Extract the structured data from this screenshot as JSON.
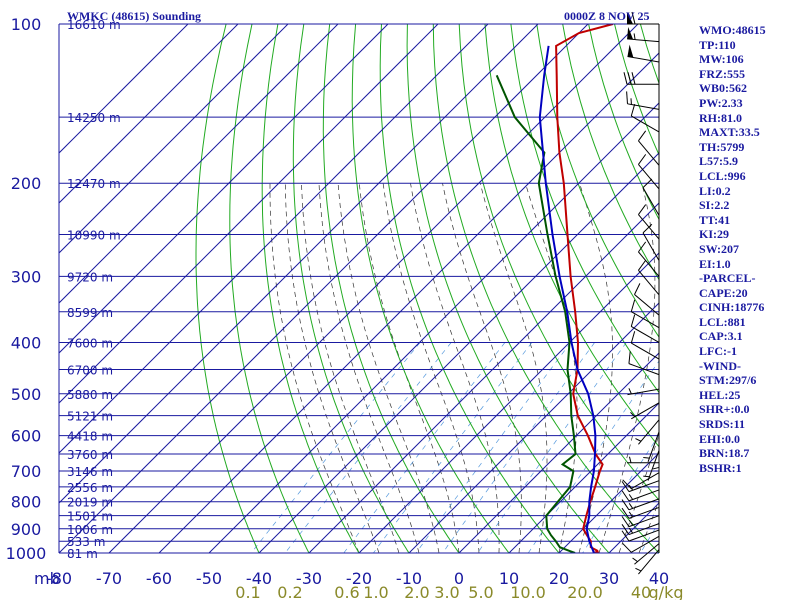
{
  "header": {
    "title": "WMKC (48615) Sounding",
    "datetime": "0000Z  8 NOV 25"
  },
  "indices": [
    "WMO:48615",
    "TP:110",
    "MW:106",
    "FRZ:555",
    "WB0:562",
    "PW:2.33",
    "RH:81.0",
    "MAXT:33.5",
    "TH:5799",
    "L57:5.9",
    "LCL:996",
    "LI:0.2",
    "SI:2.2",
    "TT:41",
    "KI:29",
    "SW:207",
    "EI:1.0",
    "-PARCEL-",
    "CAPE:20",
    "CINH:18776",
    "LCL:881",
    "CAP:3.1",
    "LFC:-1",
    "-WIND-",
    "STM:297/6",
    "HEL:25",
    "SHR+:0.0",
    "SRDS:11",
    "EHI:0.0",
    "BRN:18.7",
    "BSHR:1"
  ],
  "colors": {
    "axis": "#1a1aa0",
    "isotherm": "#1a1aa0",
    "dry_adiabat": "#22aa22",
    "moist_adiabat": "#333333",
    "mixing_ratio": "#5599dd",
    "temperature": "#c00000",
    "dewpoint": "#005500",
    "parcel": "#0000c0",
    "wind": "#000000",
    "mixing_label": "#8a8a2a"
  },
  "chart_data": {
    "type": "skew-t",
    "pressure_axis": {
      "label": "mb",
      "ticks": [
        100,
        200,
        300,
        400,
        500,
        600,
        700,
        800,
        900,
        1000
      ],
      "range": [
        100,
        1000
      ]
    },
    "temperature_axis": {
      "ticks": [
        -80,
        -70,
        -60,
        -50,
        -40,
        -30,
        -20,
        -10,
        0,
        10,
        20,
        30,
        40
      ],
      "range": [
        -80,
        40
      ]
    },
    "mixing_ratio_labels": [
      "0.1",
      "0.2",
      "0.6",
      "1.0",
      "2.0",
      "3.0",
      "5.0",
      "10.0",
      "20.0",
      "40",
      "g/kg"
    ],
    "height_labels": [
      {
        "p": 100,
        "text": "16610 m"
      },
      {
        "p": 150,
        "text": "14250 m"
      },
      {
        "p": 200,
        "text": "12470 m"
      },
      {
        "p": 250,
        "text": "10990 m"
      },
      {
        "p": 300,
        "text": "9720 m"
      },
      {
        "p": 350,
        "text": "8599 m"
      },
      {
        "p": 400,
        "text": "7600 m"
      },
      {
        "p": 450,
        "text": "6700 m"
      },
      {
        "p": 500,
        "text": "5880 m"
      },
      {
        "p": 550,
        "text": "5121 m"
      },
      {
        "p": 600,
        "text": "4418 m"
      },
      {
        "p": 650,
        "text": "3760 m"
      },
      {
        "p": 700,
        "text": "3146 m"
      },
      {
        "p": 750,
        "text": "2556 m"
      },
      {
        "p": 800,
        "text": "2019 m"
      },
      {
        "p": 850,
        "text": "1501 m"
      },
      {
        "p": 900,
        "text": "1006 m"
      },
      {
        "p": 950,
        "text": "533 m"
      },
      {
        "p": 1000,
        "text": "81 m"
      }
    ],
    "series": [
      {
        "name": "temperature",
        "points": [
          [
            1000,
            26.8
          ],
          [
            995,
            27.5
          ],
          [
            990,
            27.2
          ],
          [
            975,
            25.2
          ],
          [
            950,
            24.0
          ],
          [
            925,
            22.0
          ],
          [
            900,
            20.0
          ],
          [
            850,
            18.0
          ],
          [
            800,
            16.0
          ],
          [
            750,
            14.0
          ],
          [
            700,
            11.8
          ],
          [
            680,
            11.0
          ],
          [
            650,
            7.5
          ],
          [
            600,
            2.3
          ],
          [
            550,
            -3.7
          ],
          [
            500,
            -9.0
          ],
          [
            450,
            -13.0
          ],
          [
            400,
            -18.3
          ],
          [
            350,
            -25.0
          ],
          [
            300,
            -33.0
          ],
          [
            250,
            -42.0
          ],
          [
            200,
            -53.0
          ],
          [
            175,
            -60.0
          ],
          [
            150,
            -67.5
          ],
          [
            125,
            -76.0
          ],
          [
            110,
            -82.0
          ],
          [
            104,
            -80.0
          ],
          [
            100,
            -75.0
          ]
        ]
      },
      {
        "name": "dewpoint",
        "points": [
          [
            1000,
            23.2
          ],
          [
            990,
            21.5
          ],
          [
            975,
            19.0
          ],
          [
            950,
            17.0
          ],
          [
            925,
            14.8
          ],
          [
            900,
            12.8
          ],
          [
            850,
            10.0
          ],
          [
            800,
            9.5
          ],
          [
            750,
            9.0
          ],
          [
            700,
            6.5
          ],
          [
            680,
            3.0
          ],
          [
            650,
            3.5
          ],
          [
            600,
            -0.5
          ],
          [
            550,
            -5.0
          ],
          [
            500,
            -9.5
          ],
          [
            450,
            -15.0
          ],
          [
            400,
            -20.0
          ],
          [
            350,
            -27.0
          ],
          [
            300,
            -36.0
          ],
          [
            250,
            -46.0
          ],
          [
            200,
            -58.0
          ],
          [
            175,
            -63.0
          ],
          [
            150,
            -76.0
          ],
          [
            125,
            -88.0
          ]
        ]
      },
      {
        "name": "parcel",
        "points": [
          [
            1000,
            27.0
          ],
          [
            950,
            23.7
          ],
          [
            900,
            20.7
          ],
          [
            850,
            18.6
          ],
          [
            800,
            15.8
          ],
          [
            750,
            13.2
          ],
          [
            700,
            10.6
          ],
          [
            650,
            7.4
          ],
          [
            600,
            3.8
          ],
          [
            550,
            -0.6
          ],
          [
            500,
            -6.0
          ],
          [
            450,
            -13.0
          ],
          [
            400,
            -19.6
          ],
          [
            350,
            -26.6
          ],
          [
            300,
            -35.2
          ],
          [
            250,
            -45.0
          ],
          [
            200,
            -56.6
          ],
          [
            150,
            -71.0
          ],
          [
            125,
            -78.5
          ],
          [
            110,
            -83.5
          ]
        ]
      }
    ],
    "wind_barbs": [
      {
        "p": 100,
        "dir": 270,
        "spd": 60
      },
      {
        "p": 108,
        "dir": 275,
        "spd": 55
      },
      {
        "p": 118,
        "dir": 280,
        "spd": 50
      },
      {
        "p": 130,
        "dir": 270,
        "spd": 30
      },
      {
        "p": 145,
        "dir": 280,
        "spd": 15
      },
      {
        "p": 160,
        "dir": 300,
        "spd": 10
      },
      {
        "p": 185,
        "dir": 320,
        "spd": 10
      },
      {
        "p": 205,
        "dir": 320,
        "spd": 10
      },
      {
        "p": 230,
        "dir": 330,
        "spd": 10
      },
      {
        "p": 255,
        "dir": 320,
        "spd": 10
      },
      {
        "p": 280,
        "dir": 330,
        "spd": 10
      },
      {
        "p": 300,
        "dir": 320,
        "spd": 10
      },
      {
        "p": 325,
        "dir": 320,
        "spd": 10
      },
      {
        "p": 355,
        "dir": 310,
        "spd": 10
      },
      {
        "p": 375,
        "dir": 300,
        "spd": 10
      },
      {
        "p": 400,
        "dir": 300,
        "spd": 10
      },
      {
        "p": 430,
        "dir": 300,
        "spd": 10
      },
      {
        "p": 460,
        "dir": 290,
        "spd": 10
      },
      {
        "p": 490,
        "dir": 260,
        "spd": 5
      },
      {
        "p": 520,
        "dir": 240,
        "spd": 5
      },
      {
        "p": 560,
        "dir": 220,
        "spd": 5
      },
      {
        "p": 590,
        "dir": 200,
        "spd": 5
      },
      {
        "p": 610,
        "dir": 180,
        "spd": 5
      },
      {
        "p": 640,
        "dir": 200,
        "spd": 5
      },
      {
        "p": 675,
        "dir": 270,
        "spd": 5
      },
      {
        "p": 705,
        "dir": 240,
        "spd": 10
      },
      {
        "p": 730,
        "dir": 250,
        "spd": 15
      },
      {
        "p": 760,
        "dir": 250,
        "spd": 15
      },
      {
        "p": 790,
        "dir": 250,
        "spd": 15
      },
      {
        "p": 820,
        "dir": 250,
        "spd": 15
      },
      {
        "p": 850,
        "dir": 250,
        "spd": 15
      },
      {
        "p": 880,
        "dir": 250,
        "spd": 15
      },
      {
        "p": 905,
        "dir": 250,
        "spd": 10
      },
      {
        "p": 930,
        "dir": 240,
        "spd": 10
      },
      {
        "p": 960,
        "dir": 230,
        "spd": 5
      },
      {
        "p": 985,
        "dir": 220,
        "spd": 5
      }
    ]
  }
}
